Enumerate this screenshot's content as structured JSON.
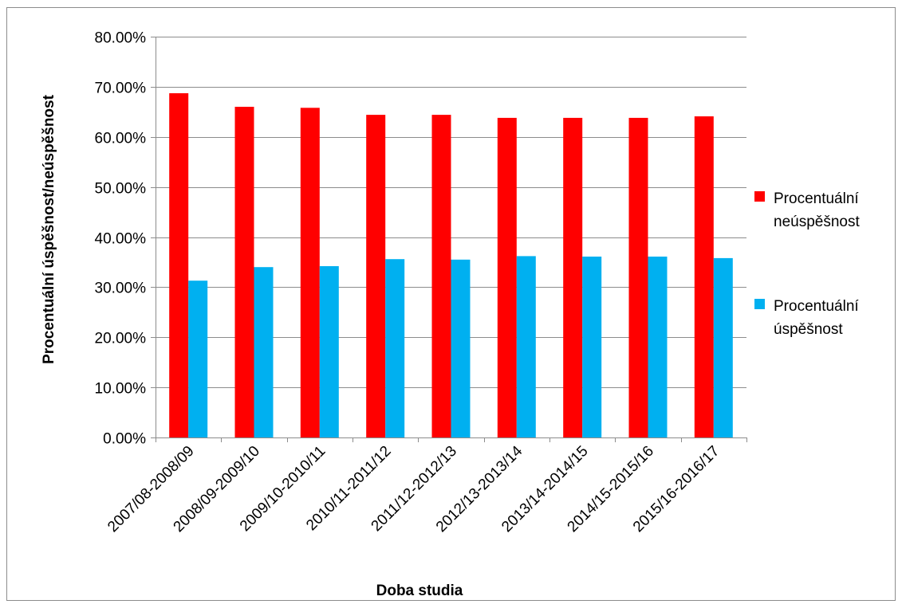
{
  "chart_data": {
    "type": "bar",
    "title": "",
    "xlabel": "Doba studia",
    "ylabel": "Procentuální úspěšnost/neúspěšnost",
    "ylim": [
      0,
      0.8
    ],
    "y_tick_step": 0.1,
    "y_tick_labels": [
      "0.00%",
      "10.00%",
      "20.00%",
      "30.00%",
      "40.00%",
      "50.00%",
      "60.00%",
      "70.00%",
      "80.00%"
    ],
    "grid": true,
    "legend_position": "right",
    "categories": [
      "2007/08-2008/09",
      "2008/09-2009/10",
      "2009/10-2010/11",
      "2010/11-2011/12",
      "2011/12-2012/13",
      "2012/13-2013/14",
      "2013/14-2014/15",
      "2014/15-2015/16",
      "2015/16-2016/17"
    ],
    "series": [
      {
        "name": "Procentuální neúspěšnost",
        "name_lines": [
          "Procentuální",
          "neúspěšnost"
        ],
        "color": "#ff0000",
        "values": [
          0.687,
          0.66,
          0.658,
          0.644,
          0.644,
          0.638,
          0.638,
          0.638,
          0.641
        ]
      },
      {
        "name": "Procentuální úspěšnost",
        "name_lines": [
          "Procentuální",
          "úspěšnost"
        ],
        "color": "#00b0f0",
        "values": [
          0.313,
          0.34,
          0.342,
          0.356,
          0.355,
          0.362,
          0.361,
          0.361,
          0.358
        ]
      }
    ]
  }
}
